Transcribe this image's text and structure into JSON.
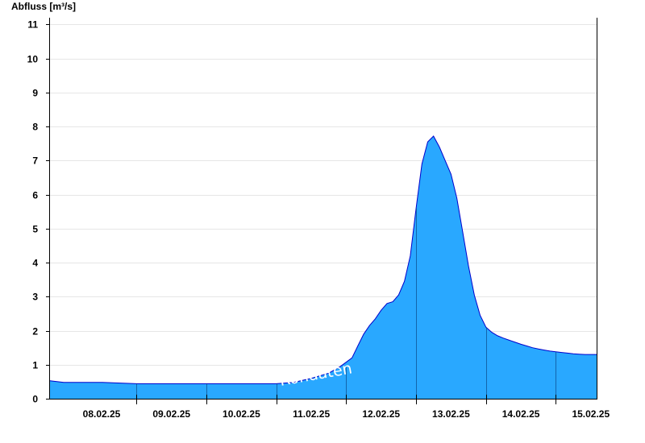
{
  "chart_data": {
    "type": "area",
    "title": "",
    "ylabel": "Abfluss [m³/s]",
    "xlabel": "",
    "ylim": [
      0,
      11.2
    ],
    "yticks": [
      "0",
      "1",
      "2",
      "3",
      "4",
      "5",
      "6",
      "7",
      "8",
      "9",
      "10",
      "11"
    ],
    "x_tick_labels": [
      "08.02.25",
      "09.02.25",
      "10.02.25",
      "11.02.25",
      "12.02.25",
      "13.02.25",
      "14.02.25",
      "15.02.25"
    ],
    "x_start": "07.02.25 18:00",
    "x_end": "15.02.25 14:00",
    "grid": true,
    "fill_color": "#29a8ff",
    "line_color": "#0000cc",
    "watermark": "Rohdaten",
    "series": [
      {
        "x": [
          "07.02.25 18:00",
          "07.02.25 23:00",
          "08.02.25 00:00",
          "08.02.25 12:00",
          "09.02.25 00:00",
          "09.02.25 12:00",
          "10.02.25 00:00",
          "10.02.25 12:00",
          "11.02.25 00:00",
          "11.02.25 06:00",
          "11.02.25 12:00",
          "11.02.25 18:00",
          "11.02.25 22:00",
          "12.02.25 02:00",
          "12.02.25 04:00",
          "12.02.25 06:00",
          "12.02.25 08:00",
          "12.02.25 10:00",
          "12.02.25 12:00",
          "12.02.25 14:00",
          "12.02.25 16:00",
          "12.02.25 18:00",
          "12.02.25 20:00",
          "12.02.25 22:00",
          "13.02.25 00:00",
          "13.02.25 02:00",
          "13.02.25 04:00",
          "13.02.25 06:00",
          "13.02.25 08:00",
          "13.02.25 10:00",
          "13.02.25 12:00",
          "13.02.25 14:00",
          "13.02.25 16:00",
          "13.02.25 18:00",
          "13.02.25 20:00",
          "13.02.25 22:00",
          "14.02.25 00:00",
          "14.02.25 02:00",
          "14.02.25 04:00",
          "14.02.25 06:00",
          "14.02.25 08:00",
          "14.02.25 10:00",
          "14.02.25 12:00",
          "14.02.25 14:00",
          "14.02.25 16:00",
          "14.02.25 18:00",
          "14.02.25 20:00",
          "14.02.25 22:00",
          "15.02.25 00:00",
          "15.02.25 02:00",
          "15.02.25 04:00",
          "15.02.25 06:00",
          "15.02.25 08:00",
          "15.02.25 10:00",
          "15.02.25 12:00",
          "15.02.25 14:00"
        ],
        "y": [
          0.53,
          0.48,
          0.48,
          0.48,
          0.44,
          0.44,
          0.44,
          0.44,
          0.44,
          0.48,
          0.6,
          0.75,
          0.95,
          1.2,
          1.55,
          1.9,
          2.15,
          2.35,
          2.6,
          2.8,
          2.85,
          3.05,
          3.45,
          4.2,
          5.6,
          6.9,
          7.55,
          7.72,
          7.4,
          7.0,
          6.6,
          5.9,
          4.9,
          3.9,
          3.05,
          2.45,
          2.1,
          1.95,
          1.85,
          1.78,
          1.72,
          1.66,
          1.6,
          1.55,
          1.5,
          1.46,
          1.43,
          1.4,
          1.38,
          1.36,
          1.34,
          1.32,
          1.31,
          1.3,
          1.3,
          1.3
        ]
      }
    ]
  }
}
